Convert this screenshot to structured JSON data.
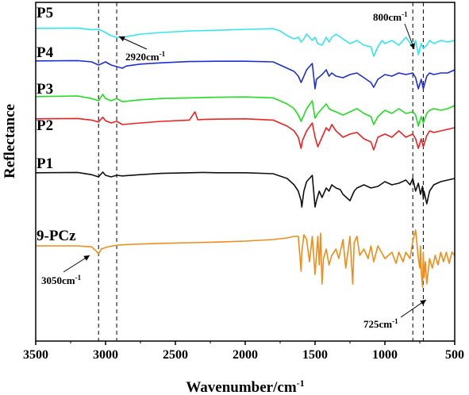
{
  "chart_data": {
    "type": "line",
    "xlabel": "Wavenumber/cm",
    "xlabel_sup": "-1",
    "ylabel": "Reflectance",
    "xlim": [
      3500,
      500
    ],
    "x_reversed": true,
    "xticks": [
      "3500",
      "3000",
      "2500",
      "2000",
      "1500",
      "1000",
      "500"
    ],
    "y_ticks_shown": false,
    "series": [
      {
        "name": "P5",
        "color": "#33e6ee",
        "x": [
          3500,
          3200,
          3100,
          3050,
          3000,
          2960,
          2920,
          2880,
          2850,
          2750,
          2600,
          2400,
          2200,
          2000,
          1800,
          1750,
          1700,
          1650,
          1620,
          1600,
          1580,
          1560,
          1520,
          1500,
          1480,
          1450,
          1420,
          1400,
          1380,
          1350,
          1300,
          1250,
          1200,
          1150,
          1100,
          1080,
          1050,
          1020,
          1000,
          950,
          900,
          850,
          800,
          780,
          760,
          740,
          725,
          700,
          680,
          650,
          600,
          550,
          500
        ],
        "y": [
          0.2,
          0.1,
          0.6,
          0.5,
          1.5,
          2.5,
          3.0,
          3.2,
          2.8,
          2.0,
          1.5,
          1.0,
          0.8,
          0.5,
          0.3,
          1.0,
          2.5,
          3.5,
          3.0,
          4.5,
          3.5,
          2.0,
          4.0,
          3.0,
          5.0,
          5.5,
          3.0,
          4.5,
          3.0,
          2.0,
          3.5,
          5.0,
          4.0,
          5.5,
          6.0,
          9.0,
          6.0,
          4.0,
          5.0,
          4.0,
          5.5,
          3.0,
          6.0,
          4.0,
          8.5,
          5.0,
          6.5,
          5.5,
          4.0,
          5.0,
          4.0,
          4.5,
          4.0
        ]
      },
      {
        "name": "P4",
        "color": "#1f2fd6",
        "x": [
          3500,
          3200,
          3100,
          3050,
          3000,
          2960,
          2920,
          2880,
          2850,
          2750,
          2600,
          2400,
          2200,
          2000,
          1800,
          1700,
          1650,
          1620,
          1600,
          1590,
          1560,
          1520,
          1500,
          1490,
          1450,
          1420,
          1400,
          1380,
          1350,
          1300,
          1250,
          1200,
          1150,
          1100,
          1080,
          1050,
          1000,
          950,
          900,
          850,
          800,
          780,
          760,
          740,
          725,
          700,
          680,
          650,
          600,
          550,
          500
        ],
        "y": [
          0.2,
          0.1,
          0.5,
          1.5,
          0.5,
          1.5,
          2.0,
          2.5,
          1.8,
          1.2,
          0.8,
          0.4,
          0.3,
          0.3,
          0.5,
          2.5,
          3.5,
          5.0,
          7.0,
          6.0,
          3.0,
          1.0,
          9.0,
          6.0,
          4.5,
          3.0,
          5.0,
          4.0,
          5.0,
          5.5,
          4.5,
          4.0,
          5.5,
          7.0,
          8.5,
          6.0,
          4.5,
          5.0,
          4.0,
          4.5,
          4.0,
          5.5,
          9.0,
          6.0,
          9.0,
          5.0,
          4.0,
          4.5,
          4.0,
          4.0,
          3.0
        ]
      },
      {
        "name": "P3",
        "color": "#22dd22",
        "x": [
          3500,
          3200,
          3100,
          3050,
          3020,
          3000,
          2960,
          2920,
          2880,
          2750,
          2600,
          2400,
          2200,
          2000,
          1800,
          1700,
          1650,
          1620,
          1600,
          1590,
          1560,
          1520,
          1500,
          1480,
          1450,
          1420,
          1400,
          1380,
          1350,
          1300,
          1250,
          1200,
          1150,
          1100,
          1080,
          1050,
          1000,
          950,
          900,
          850,
          800,
          780,
          760,
          740,
          725,
          700,
          680,
          650,
          600,
          550,
          500
        ],
        "y": [
          0.2,
          0.0,
          0.8,
          1.5,
          -0.5,
          0.8,
          1.5,
          0.8,
          1.8,
          1.2,
          0.8,
          0.6,
          0.4,
          0.3,
          0.6,
          2.5,
          4.0,
          6.0,
          8.0,
          7.0,
          4.0,
          1.5,
          7.0,
          5.5,
          4.0,
          2.5,
          4.0,
          4.5,
          5.0,
          6.0,
          5.0,
          4.0,
          5.5,
          6.5,
          9.0,
          6.5,
          4.5,
          5.5,
          4.0,
          5.5,
          5.0,
          6.0,
          9.5,
          6.5,
          8.5,
          5.5,
          4.5,
          4.0,
          4.5,
          4.0,
          3.0
        ]
      },
      {
        "name": "P2",
        "color": "#ee2222",
        "x": [
          3500,
          3200,
          3100,
          3050,
          3020,
          3000,
          2960,
          2920,
          2880,
          2750,
          2600,
          2400,
          2360,
          2340,
          2300,
          2200,
          2000,
          1800,
          1700,
          1650,
          1620,
          1600,
          1590,
          1560,
          1520,
          1500,
          1480,
          1450,
          1420,
          1400,
          1380,
          1350,
          1300,
          1250,
          1200,
          1150,
          1100,
          1080,
          1050,
          1000,
          950,
          900,
          850,
          800,
          780,
          760,
          740,
          725,
          700,
          680,
          650,
          600,
          550,
          500
        ],
        "y": [
          0.2,
          0.1,
          0.6,
          1.2,
          -0.3,
          0.8,
          1.5,
          1.0,
          2.0,
          1.5,
          1.0,
          0.6,
          -2.0,
          0.5,
          0.4,
          0.3,
          0.2,
          0.6,
          2.5,
          4.0,
          6.0,
          9.5,
          7.0,
          4.0,
          1.5,
          6.0,
          9.0,
          6.0,
          3.0,
          4.0,
          2.0,
          4.0,
          6.0,
          5.0,
          4.5,
          6.5,
          7.5,
          10.0,
          6.0,
          5.0,
          6.0,
          4.0,
          6.0,
          5.0,
          6.5,
          9.5,
          6.5,
          9.0,
          5.5,
          4.0,
          4.5,
          4.0,
          3.5,
          3.0
        ]
      },
      {
        "name": "P1",
        "color": "#111111",
        "x": [
          3500,
          3200,
          3100,
          3050,
          3020,
          3000,
          2960,
          2920,
          2880,
          2750,
          2600,
          2400,
          2300,
          2200,
          2000,
          1800,
          1700,
          1650,
          1620,
          1600,
          1595,
          1580,
          1560,
          1520,
          1500,
          1490,
          1470,
          1450,
          1420,
          1400,
          1380,
          1350,
          1320,
          1300,
          1250,
          1220,
          1200,
          1150,
          1100,
          1050,
          1000,
          950,
          900,
          850,
          820,
          800,
          780,
          760,
          745,
          730,
          725,
          720,
          700,
          680,
          650,
          600,
          550,
          500
        ],
        "y": [
          0.2,
          0.1,
          0.8,
          1.5,
          0.0,
          1.0,
          1.5,
          1.0,
          1.2,
          0.8,
          0.4,
          0.2,
          0.1,
          0.2,
          0.2,
          0.5,
          2.0,
          4.0,
          6.0,
          9.0,
          11.0,
          6.0,
          3.0,
          1.0,
          11.0,
          9.0,
          6.0,
          8.0,
          5.0,
          6.0,
          4.0,
          5.0,
          5.5,
          7.0,
          9.0,
          6.0,
          5.0,
          4.0,
          5.0,
          4.5,
          3.0,
          4.0,
          3.5,
          2.5,
          4.0,
          2.0,
          6.0,
          3.5,
          7.0,
          4.5,
          8.5,
          6.0,
          10.0,
          6.0,
          4.0,
          3.0,
          2.5,
          2.0
        ]
      },
      {
        "name": "9-PCz",
        "color": "#f08c1a",
        "x": [
          3500,
          3200,
          3100,
          3070,
          3050,
          3030,
          3000,
          2950,
          2900,
          2800,
          2600,
          2400,
          2200,
          2000,
          1800,
          1700,
          1650,
          1620,
          1600,
          1595,
          1580,
          1560,
          1540,
          1520,
          1500,
          1480,
          1470,
          1460,
          1450,
          1440,
          1420,
          1400,
          1380,
          1350,
          1330,
          1300,
          1280,
          1250,
          1230,
          1220,
          1200,
          1180,
          1150,
          1120,
          1100,
          1080,
          1050,
          1000,
          950,
          920,
          900,
          870,
          850,
          820,
          800,
          780,
          760,
          750,
          745,
          740,
          730,
          725,
          720,
          710,
          700,
          680,
          660,
          640,
          620,
          600,
          580,
          560,
          540,
          520,
          500
        ],
        "y": [
          0.0,
          0.0,
          0.3,
          1.5,
          2.5,
          1.0,
          0.5,
          0.0,
          -0.3,
          -0.5,
          -0.8,
          -1.0,
          -1.2,
          -1.5,
          -2.0,
          -2.5,
          -3.0,
          -3.0,
          8.0,
          2.0,
          -3.5,
          -2.0,
          5.0,
          -3.0,
          9.0,
          -3.0,
          6.0,
          -4.0,
          12.0,
          4.0,
          1.0,
          6.0,
          3.0,
          1.0,
          4.0,
          -2.0,
          7.0,
          -3.0,
          12.0,
          -1.0,
          -3.0,
          3.0,
          1.0,
          4.0,
          0.0,
          5.0,
          0.0,
          4.0,
          2.0,
          5.5,
          2.0,
          5.0,
          2.0,
          4.0,
          -1.5,
          -5.0,
          4.0,
          7.0,
          0.0,
          8.0,
          13.0,
          2.0,
          10.0,
          5.0,
          12.0,
          4.0,
          7.0,
          3.0,
          6.0,
          2.0,
          5.0,
          2.0,
          5.5,
          2.0,
          3.0
        ]
      }
    ],
    "annotations": [
      {
        "text": "2920cm",
        "sup": "-1",
        "x": 2920
      },
      {
        "text": "800cm",
        "sup": "-1",
        "x": 800
      },
      {
        "text": "3050cm",
        "sup": "-1",
        "x": 3050
      },
      {
        "text": "725cm",
        "sup": "-1",
        "x": 725
      }
    ],
    "reference_lines_x": [
      3050,
      2920,
      800,
      725
    ]
  }
}
